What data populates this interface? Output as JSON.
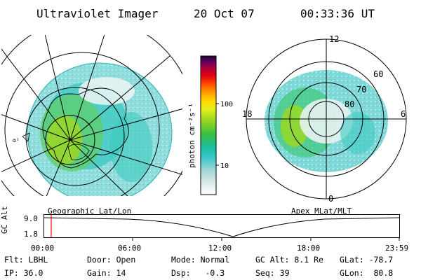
{
  "header": {
    "instrument": "Ultraviolet Imager",
    "date": "20 Oct 07",
    "time": "00:33:36 UT"
  },
  "left_map": {
    "caption": "Geographic Lat/Lon",
    "edge_label": "α²"
  },
  "right_map": {
    "caption": "Apex MLat/MLT",
    "mlt_labels": {
      "top": "12",
      "left": "18",
      "right": "6",
      "bottom": "0"
    },
    "lat_labels": [
      "60",
      "70",
      "80"
    ]
  },
  "colorbar": {
    "label": "photon cm⁻²s⁻¹",
    "ticks": [
      "100",
      "10"
    ],
    "colors": [
      "#ffffff",
      "#dfeaea",
      "#9fd6d6",
      "#3ec9c9",
      "#1abfa0",
      "#3fbf3f",
      "#9fd81f",
      "#e8ef1f",
      "#ffd400",
      "#ff9a00",
      "#ff4800",
      "#e00010",
      "#b0003a",
      "#600060",
      "#1a0030"
    ]
  },
  "timeline": {
    "y_label": "GC Alt",
    "y_ticks": [
      "9.0",
      "1.8"
    ],
    "x_ticks": [
      "00:00",
      "06:00",
      "12:00",
      "18:00",
      "23:59"
    ],
    "marker_color": "#ff0000"
  },
  "status": {
    "row1": [
      {
        "label": "Flt:",
        "value": "LBHL"
      },
      {
        "label": "Door:",
        "value": "Open"
      },
      {
        "label": "Mode:",
        "value": "Normal"
      },
      {
        "label": "GC Alt:",
        "value": "8.1 Re"
      },
      {
        "label": "GLat:",
        "value": "-78.7"
      }
    ],
    "row2": [
      {
        "label": "IP:",
        "value": "36.0"
      },
      {
        "label": "Gain:",
        "value": "14"
      },
      {
        "label": "Dsp:",
        "value": "-0.3"
      },
      {
        "label": "Seq:",
        "value": "39"
      },
      {
        "label": "GLon:",
        "value": "80.8"
      }
    ]
  }
}
